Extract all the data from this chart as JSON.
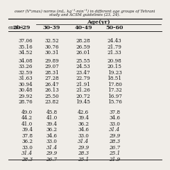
{
  "title_line1": "ower (Vᵒ₂max) norms (mL. kg⁻¹·min⁻¹) in different age groups of Tehrani",
  "title_line2": "study and ACSM guidelines (23, 24).",
  "age_header": "Age(yr)",
  "col_headers": [
    "20-29",
    "30-39",
    "40-49",
    "50-60",
    ""
  ],
  "row_label": "entile)",
  "section1_rows": [
    [
      "37.06",
      "32.52",
      "28.28",
      "24.43",
      ""
    ],
    [
      "35.16",
      "30.76",
      "26.59",
      "21.79",
      ""
    ],
    [
      "34.52",
      "30.31",
      "26.01",
      "21.33",
      ""
    ],
    [
      "",
      "",
      "",
      "",
      ""
    ],
    [
      "34.08",
      "29.89",
      "25.55",
      "20.98",
      ""
    ],
    [
      "33.26",
      "29.07",
      "24.53",
      "20.15",
      ""
    ],
    [
      "32.59",
      "28.31",
      "23.47",
      "19.23",
      ""
    ],
    [
      "31.63",
      "27.28",
      "22.79",
      "18.51",
      ""
    ],
    [
      "30.94",
      "26.47",
      "21.91",
      "17.80",
      ""
    ],
    [
      "30.48",
      "26.13",
      "21.26",
      "17.32",
      ""
    ],
    [
      "29.92",
      "25.50",
      "20.72",
      "16.97",
      ""
    ],
    [
      "28.76",
      "23.82",
      "19.45",
      "15.76",
      ""
    ]
  ],
  "section2_rows": [
    [
      "49.0",
      "45.8",
      "42.6",
      "37.8",
      ""
    ],
    [
      "44.2",
      "41.0",
      "39.4",
      "34.6",
      ""
    ],
    [
      "41.0",
      "39.4",
      "36.2",
      "33.0",
      ""
    ],
    [
      "39.4",
      "36.2",
      "34.6",
      "31.4",
      ""
    ],
    [
      "37.8",
      "34.6",
      "33.0",
      "29.9",
      ""
    ],
    [
      "36.2",
      "33.0",
      "31.4",
      "28.3",
      ""
    ],
    [
      "33.0",
      "31.4",
      "29.9",
      "26.7",
      ""
    ],
    [
      "31.4",
      "29.9",
      "28.3",
      "25.1",
      ""
    ],
    [
      "28.3",
      "26.7",
      "25.1",
      "21.9",
      ""
    ]
  ],
  "bg_color": "#f0ede8",
  "text_color": "#1a1a1a",
  "font_size": 5.2,
  "header_font_size": 5.8,
  "title_font_size": 4.0
}
